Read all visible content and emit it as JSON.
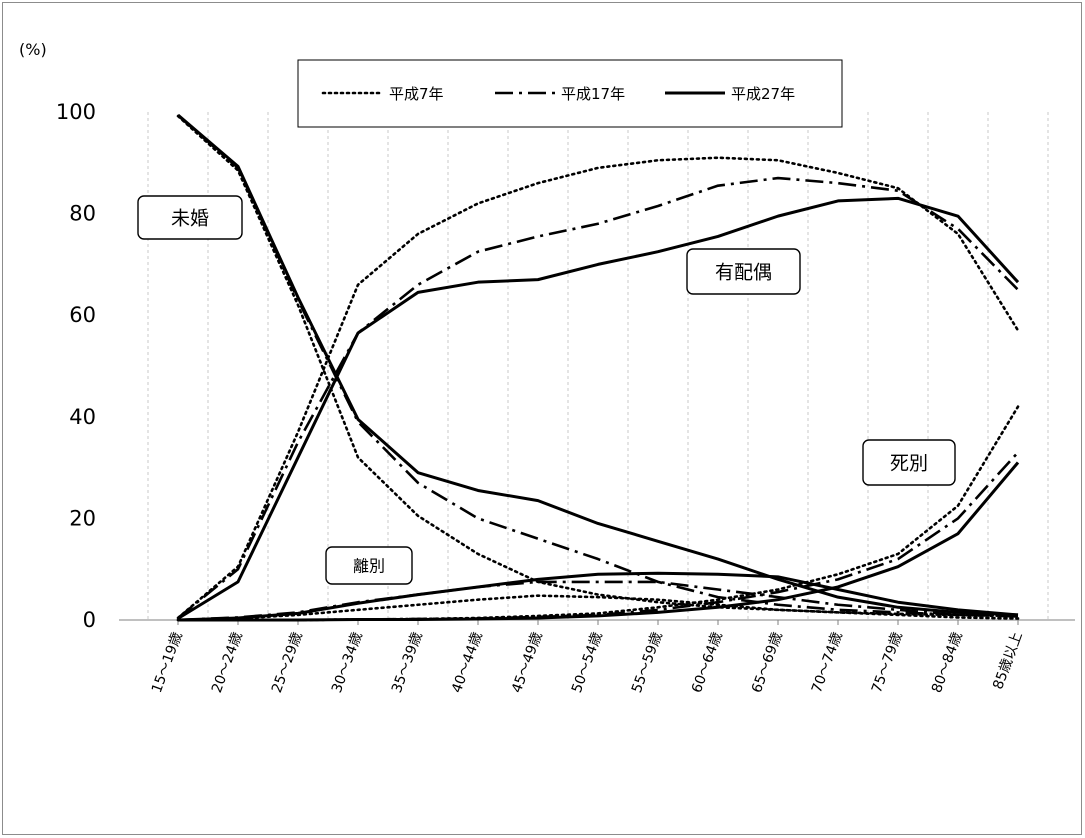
{
  "chart_data": {
    "type": "line",
    "y_unit": "(%)",
    "ylim": [
      0,
      100
    ],
    "yticks": [
      0,
      20,
      40,
      60,
      80,
      100
    ],
    "grid": "vertical dashed",
    "legend_position": "top",
    "categories": [
      "15～19歳",
      "20～24歳",
      "25～29歳",
      "30～34歳",
      "35～39歳",
      "40～44歳",
      "45～49歳",
      "50～54歳",
      "55～59歳",
      "60～64歳",
      "65～69歳",
      "70～74歳",
      "75～79歳",
      "80～84歳",
      "85歳以上"
    ],
    "series_styles": [
      {
        "name": "平成7年",
        "style": "dotted"
      },
      {
        "name": "平成17年",
        "style": "dashdot"
      },
      {
        "name": "平成27年",
        "style": "solid"
      }
    ],
    "groups": [
      {
        "label": "未婚",
        "values": {
          "平成7年": [
            99.2,
            88.5,
            62.0,
            32.0,
            20.5,
            13.0,
            7.5,
            5.0,
            3.5,
            2.5,
            2.0,
            1.5,
            1.2,
            1.0,
            0.8
          ],
          "平成17年": [
            99.3,
            89.0,
            63.0,
            39.0,
            27.0,
            20.0,
            16.0,
            12.0,
            7.5,
            4.5,
            3.0,
            2.0,
            1.5,
            1.0,
            0.8
          ],
          "平成27年": [
            99.4,
            89.3,
            63.5,
            39.5,
            29.0,
            25.5,
            23.5,
            19.0,
            15.5,
            12.0,
            8.0,
            4.5,
            2.5,
            1.5,
            1.0
          ]
        }
      },
      {
        "label": "有配偶",
        "values": {
          "平成7年": [
            0.4,
            10.5,
            37.0,
            66.0,
            76.0,
            82.0,
            86.0,
            89.0,
            90.5,
            91.0,
            90.5,
            88.0,
            85.0,
            76.0,
            57.0
          ],
          "平成17年": [
            0.4,
            10.0,
            35.0,
            56.5,
            66.0,
            72.5,
            75.5,
            78.0,
            81.5,
            85.5,
            87.0,
            86.0,
            84.5,
            77.0,
            65.0
          ],
          "平成27年": [
            0.3,
            7.5,
            32.0,
            56.5,
            64.5,
            66.5,
            67.0,
            70.0,
            72.5,
            75.5,
            79.5,
            82.5,
            83.0,
            79.5,
            66.5
          ]
        }
      },
      {
        "label": "死別",
        "values": {
          "平成7年": [
            0.0,
            0.0,
            0.0,
            0.1,
            0.2,
            0.4,
            0.8,
            1.3,
            2.5,
            4.0,
            6.0,
            9.0,
            13.0,
            22.5,
            42.0
          ],
          "平成17年": [
            0.0,
            0.0,
            0.0,
            0.1,
            0.2,
            0.3,
            0.6,
            1.0,
            2.0,
            3.5,
            5.5,
            8.0,
            12.0,
            20.0,
            33.0
          ],
          "平成27年": [
            0.0,
            0.0,
            0.0,
            0.1,
            0.1,
            0.2,
            0.4,
            0.8,
            1.5,
            2.5,
            4.0,
            6.5,
            10.5,
            17.0,
            31.0
          ]
        }
      },
      {
        "label": "離別",
        "values": {
          "平成7年": [
            0.0,
            0.3,
            1.0,
            2.0,
            3.0,
            4.0,
            4.8,
            4.5,
            4.0,
            3.0,
            2.0,
            1.5,
            1.0,
            0.5,
            0.3
          ],
          "平成17年": [
            0.0,
            0.5,
            1.5,
            3.5,
            5.0,
            6.5,
            7.5,
            7.5,
            7.5,
            6.0,
            4.5,
            3.0,
            2.0,
            1.0,
            0.7
          ],
          "平成27年": [
            0.0,
            0.4,
            1.3,
            3.3,
            5.0,
            6.5,
            8.0,
            9.0,
            9.2,
            9.0,
            8.5,
            6.0,
            3.5,
            2.0,
            1.0
          ]
        }
      }
    ],
    "annotations": [
      "未婚",
      "有配偶",
      "死別",
      "離別"
    ]
  }
}
